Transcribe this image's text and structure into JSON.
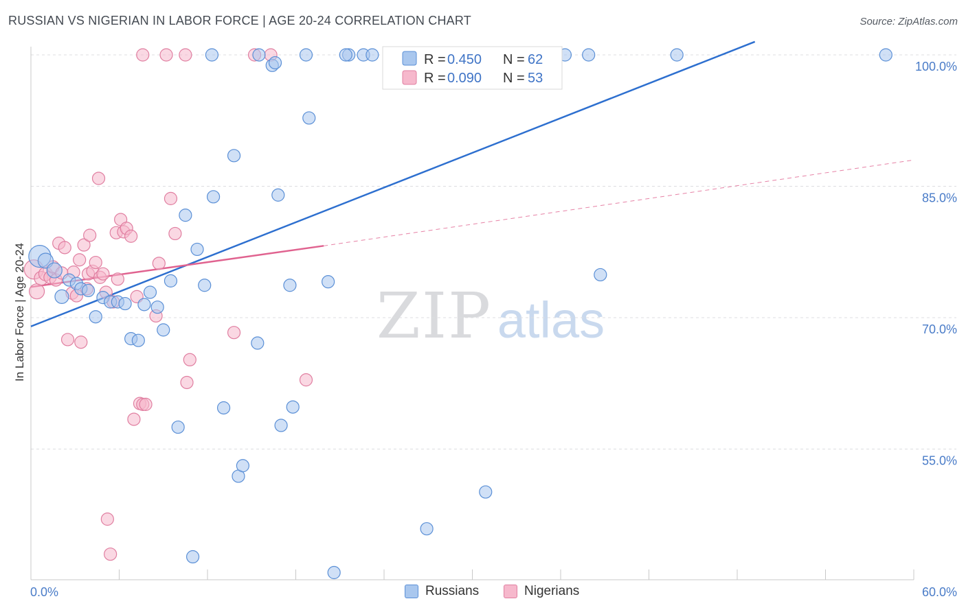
{
  "title": "RUSSIAN VS NIGERIAN IN LABOR FORCE | AGE 20-24 CORRELATION CHART",
  "source": "Source: ZipAtlas.com",
  "watermark": {
    "zip": "ZIP",
    "atlas": "atlas"
  },
  "colors": {
    "russians_fill": "#a9c7ee",
    "russians_stroke": "#5a8fd6",
    "russians_line": "#2d6fcf",
    "nigerians_fill": "#f6b8cc",
    "nigerians_stroke": "#e07ea0",
    "nigerians_line": "#e0628f",
    "accent_text": "#3f74c6"
  },
  "legend": {
    "russians": {
      "r_label": "R = ",
      "r_value": "0.450",
      "n_label": "N = ",
      "n_value": "62"
    },
    "nigerians": {
      "r_label": "R = ",
      "r_value": "0.090",
      "n_label": "N = ",
      "n_value": "53"
    }
  },
  "bottom_legend": {
    "russians": "Russians",
    "nigerians": "Nigerians"
  },
  "chart_data": {
    "type": "scatter",
    "xlabel": "",
    "ylabel": "In Labor Force | Age 20-24",
    "xlim": [
      0,
      60
    ],
    "ylim": [
      38,
      101.5
    ],
    "x_tick_labels": [
      "0.0%",
      "60.0%"
    ],
    "y_ticks": [
      55,
      70,
      85,
      100
    ],
    "y_tick_labels": [
      "55.0%",
      "70.0%",
      "85.0%",
      "100.0%"
    ],
    "grid": true,
    "series": [
      {
        "name": "Russians",
        "r": 0.45,
        "n": 62,
        "trend": {
          "x": [
            0,
            49.2
          ],
          "y": [
            69.0,
            101.5
          ],
          "dashed_to": null
        },
        "points": [
          {
            "x": 0.6,
            "y": 77.0,
            "s": 16
          },
          {
            "x": 1.0,
            "y": 76.5,
            "s": 11
          },
          {
            "x": 1.6,
            "y": 75.4,
            "s": 11
          },
          {
            "x": 2.1,
            "y": 72.4,
            "s": 10
          },
          {
            "x": 2.6,
            "y": 74.3,
            "s": 9
          },
          {
            "x": 3.1,
            "y": 73.9,
            "s": 9
          },
          {
            "x": 3.4,
            "y": 73.3,
            "s": 9
          },
          {
            "x": 3.9,
            "y": 73.1,
            "s": 9
          },
          {
            "x": 4.4,
            "y": 70.1,
            "s": 9
          },
          {
            "x": 4.9,
            "y": 72.3,
            "s": 9
          },
          {
            "x": 5.4,
            "y": 71.8,
            "s": 9
          },
          {
            "x": 5.9,
            "y": 71.8,
            "s": 9
          },
          {
            "x": 6.4,
            "y": 71.6,
            "s": 9
          },
          {
            "x": 6.8,
            "y": 67.6,
            "s": 9
          },
          {
            "x": 7.3,
            "y": 67.4,
            "s": 9
          },
          {
            "x": 7.7,
            "y": 71.5,
            "s": 9
          },
          {
            "x": 8.1,
            "y": 72.9,
            "s": 9
          },
          {
            "x": 8.6,
            "y": 71.2,
            "s": 9
          },
          {
            "x": 9.0,
            "y": 68.6,
            "s": 9
          },
          {
            "x": 9.5,
            "y": 74.2,
            "s": 9
          },
          {
            "x": 10.0,
            "y": 57.5,
            "s": 9
          },
          {
            "x": 10.5,
            "y": 81.7,
            "s": 9
          },
          {
            "x": 11.3,
            "y": 77.8,
            "s": 9
          },
          {
            "x": 11.8,
            "y": 73.7,
            "s": 9
          },
          {
            "x": 12.4,
            "y": 83.8,
            "s": 9
          },
          {
            "x": 13.1,
            "y": 59.7,
            "s": 9
          },
          {
            "x": 13.8,
            "y": 88.5,
            "s": 9
          },
          {
            "x": 14.1,
            "y": 51.9,
            "s": 9
          },
          {
            "x": 14.4,
            "y": 53.1,
            "s": 9
          },
          {
            "x": 15.4,
            "y": 67.1,
            "s": 9
          },
          {
            "x": 16.4,
            "y": 98.8,
            "s": 9
          },
          {
            "x": 16.6,
            "y": 99.1,
            "s": 9
          },
          {
            "x": 16.8,
            "y": 84.0,
            "s": 9
          },
          {
            "x": 17.0,
            "y": 57.7,
            "s": 9
          },
          {
            "x": 17.6,
            "y": 73.7,
            "s": 9
          },
          {
            "x": 17.8,
            "y": 59.8,
            "s": 9
          },
          {
            "x": 18.7,
            "y": 100.0,
            "s": 9
          },
          {
            "x": 18.9,
            "y": 92.8,
            "s": 9
          },
          {
            "x": 20.2,
            "y": 74.1,
            "s": 9
          },
          {
            "x": 20.6,
            "y": 40.9,
            "s": 9
          },
          {
            "x": 21.6,
            "y": 100.0,
            "s": 9
          },
          {
            "x": 22.6,
            "y": 100.0,
            "s": 9
          },
          {
            "x": 23.2,
            "y": 100.0,
            "s": 9
          },
          {
            "x": 24.6,
            "y": 100.0,
            "s": 9
          },
          {
            "x": 26.6,
            "y": 100.0,
            "s": 9
          },
          {
            "x": 26.9,
            "y": 45.9,
            "s": 9
          },
          {
            "x": 29.0,
            "y": 100.0,
            "s": 9
          },
          {
            "x": 30.6,
            "y": 100.0,
            "s": 9
          },
          {
            "x": 31.0,
            "y": 100.0,
            "s": 9
          },
          {
            "x": 31.4,
            "y": 100.0,
            "s": 9
          },
          {
            "x": 30.9,
            "y": 50.1,
            "s": 9
          },
          {
            "x": 33.5,
            "y": 100.0,
            "s": 9
          },
          {
            "x": 35.0,
            "y": 100.0,
            "s": 9
          },
          {
            "x": 36.3,
            "y": 100.0,
            "s": 9
          },
          {
            "x": 37.9,
            "y": 100.0,
            "s": 9
          },
          {
            "x": 38.7,
            "y": 74.9,
            "s": 9
          },
          {
            "x": 43.9,
            "y": 100.0,
            "s": 9
          },
          {
            "x": 58.1,
            "y": 100.0,
            "s": 9
          },
          {
            "x": 11.0,
            "y": 42.7,
            "s": 9
          },
          {
            "x": 12.3,
            "y": 100.0,
            "s": 9
          },
          {
            "x": 15.5,
            "y": 100.0,
            "s": 9
          },
          {
            "x": 21.4,
            "y": 100.0,
            "s": 9
          }
        ]
      },
      {
        "name": "Nigerians",
        "r": 0.09,
        "n": 53,
        "trend": {
          "x": [
            0,
            19.9
          ],
          "y": [
            73.5,
            78.2
          ],
          "dashed_to": {
            "x": 60,
            "y": 88.0
          }
        },
        "points": [
          {
            "x": 0.2,
            "y": 75.5,
            "s": 14
          },
          {
            "x": 0.4,
            "y": 73.0,
            "s": 11
          },
          {
            "x": 0.7,
            "y": 74.5,
            "s": 10
          },
          {
            "x": 1.0,
            "y": 75.0,
            "s": 10
          },
          {
            "x": 1.3,
            "y": 74.6,
            "s": 9
          },
          {
            "x": 1.5,
            "y": 75.8,
            "s": 9
          },
          {
            "x": 1.7,
            "y": 74.3,
            "s": 9
          },
          {
            "x": 1.9,
            "y": 78.5,
            "s": 9
          },
          {
            "x": 2.1,
            "y": 75.1,
            "s": 9
          },
          {
            "x": 2.3,
            "y": 78.0,
            "s": 9
          },
          {
            "x": 2.5,
            "y": 67.5,
            "s": 9
          },
          {
            "x": 2.8,
            "y": 72.8,
            "s": 9
          },
          {
            "x": 2.9,
            "y": 75.2,
            "s": 9
          },
          {
            "x": 3.1,
            "y": 72.5,
            "s": 9
          },
          {
            "x": 3.3,
            "y": 76.6,
            "s": 9
          },
          {
            "x": 3.4,
            "y": 67.2,
            "s": 9
          },
          {
            "x": 3.6,
            "y": 78.3,
            "s": 9
          },
          {
            "x": 3.8,
            "y": 73.3,
            "s": 9
          },
          {
            "x": 3.9,
            "y": 75.0,
            "s": 9
          },
          {
            "x": 4.0,
            "y": 79.4,
            "s": 9
          },
          {
            "x": 4.2,
            "y": 75.3,
            "s": 9
          },
          {
            "x": 4.4,
            "y": 76.3,
            "s": 9
          },
          {
            "x": 4.6,
            "y": 85.9,
            "s": 9
          },
          {
            "x": 4.7,
            "y": 74.6,
            "s": 9
          },
          {
            "x": 4.9,
            "y": 75.0,
            "s": 9
          },
          {
            "x": 5.1,
            "y": 72.9,
            "s": 9
          },
          {
            "x": 5.2,
            "y": 47.0,
            "s": 9
          },
          {
            "x": 5.4,
            "y": 43.0,
            "s": 9
          },
          {
            "x": 5.6,
            "y": 71.8,
            "s": 9
          },
          {
            "x": 5.8,
            "y": 79.7,
            "s": 9
          },
          {
            "x": 5.9,
            "y": 74.4,
            "s": 9
          },
          {
            "x": 6.1,
            "y": 81.2,
            "s": 9
          },
          {
            "x": 6.3,
            "y": 79.8,
            "s": 9
          },
          {
            "x": 6.5,
            "y": 80.2,
            "s": 9
          },
          {
            "x": 6.8,
            "y": 79.3,
            "s": 9
          },
          {
            "x": 7.0,
            "y": 58.4,
            "s": 9
          },
          {
            "x": 7.2,
            "y": 72.4,
            "s": 9
          },
          {
            "x": 7.4,
            "y": 60.2,
            "s": 9
          },
          {
            "x": 7.6,
            "y": 60.1,
            "s": 9
          },
          {
            "x": 7.8,
            "y": 60.1,
            "s": 9
          },
          {
            "x": 7.6,
            "y": 100.0,
            "s": 9
          },
          {
            "x": 8.5,
            "y": 70.2,
            "s": 9
          },
          {
            "x": 8.7,
            "y": 76.2,
            "s": 9
          },
          {
            "x": 9.2,
            "y": 100.0,
            "s": 9
          },
          {
            "x": 9.5,
            "y": 83.6,
            "s": 9
          },
          {
            "x": 9.8,
            "y": 79.6,
            "s": 9
          },
          {
            "x": 10.5,
            "y": 100.0,
            "s": 9
          },
          {
            "x": 10.6,
            "y": 62.6,
            "s": 9
          },
          {
            "x": 10.8,
            "y": 65.2,
            "s": 9
          },
          {
            "x": 13.8,
            "y": 68.3,
            "s": 9
          },
          {
            "x": 15.2,
            "y": 100.0,
            "s": 9
          },
          {
            "x": 16.3,
            "y": 100.0,
            "s": 9
          },
          {
            "x": 18.7,
            "y": 62.9,
            "s": 9
          }
        ]
      }
    ]
  }
}
